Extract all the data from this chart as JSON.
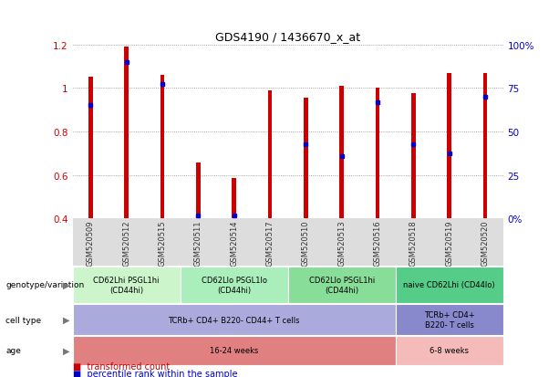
{
  "title": "GDS4190 / 1436670_x_at",
  "samples": [
    "GSM520509",
    "GSM520512",
    "GSM520515",
    "GSM520511",
    "GSM520514",
    "GSM520517",
    "GSM520510",
    "GSM520513",
    "GSM520516",
    "GSM520518",
    "GSM520519",
    "GSM520520"
  ],
  "red_values": [
    1.05,
    1.19,
    1.06,
    0.655,
    0.585,
    0.99,
    0.955,
    1.01,
    1.0,
    0.975,
    1.07,
    1.07
  ],
  "blue_values": [
    0.92,
    1.12,
    1.02,
    0.415,
    0.415,
    null,
    0.74,
    0.685,
    0.935,
    0.74,
    0.7,
    0.96
  ],
  "ymin": 0.4,
  "ymax": 1.2,
  "yticks_left": [
    0.4,
    0.6,
    0.8,
    1.0,
    1.2
  ],
  "ytick_labels_left": [
    "0.4",
    "0.6",
    "0.8",
    "1",
    "1.2"
  ],
  "right_ytick_pcts": [
    0,
    25,
    50,
    75,
    100
  ],
  "right_ytick_labels": [
    "0%",
    "25",
    "50",
    "75",
    "100%"
  ],
  "bar_color": "#cc0000",
  "dot_color": "#0000cc",
  "genotype_groups": [
    {
      "label": "CD62Lhi PSGL1hi\n(CD44hi)",
      "start": 0,
      "end": 2,
      "color": "#ccf5cc"
    },
    {
      "label": "CD62Llo PSGL1lo\n(CD44hi)",
      "start": 3,
      "end": 5,
      "color": "#aaeebb"
    },
    {
      "label": "CD62Llo PSGL1hi\n(CD44hi)",
      "start": 6,
      "end": 8,
      "color": "#88dd99"
    },
    {
      "label": "naive CD62Lhi (CD44lo)",
      "start": 9,
      "end": 11,
      "color": "#55cc88"
    }
  ],
  "cell_type_groups": [
    {
      "label": "TCRb+ CD4+ B220- CD44+ T cells",
      "start": 0,
      "end": 8,
      "color": "#aaaadd"
    },
    {
      "label": "TCRb+ CD4+\nB220- T cells",
      "start": 9,
      "end": 11,
      "color": "#8888cc"
    }
  ],
  "age_groups": [
    {
      "label": "16-24 weeks",
      "start": 0,
      "end": 8,
      "color": "#e08080"
    },
    {
      "label": "6-8 weeks",
      "start": 9,
      "end": 11,
      "color": "#f5bbbb"
    }
  ],
  "bar_color_red": "#cc0000",
  "dot_color_blue": "#0000cc",
  "left_tick_color": "#cc0000",
  "right_tick_color": "#0000cc",
  "grid_linestyle": ":",
  "grid_color": "#888888",
  "bar_width": 0.12,
  "fig_width": 6.13,
  "fig_height": 4.14
}
